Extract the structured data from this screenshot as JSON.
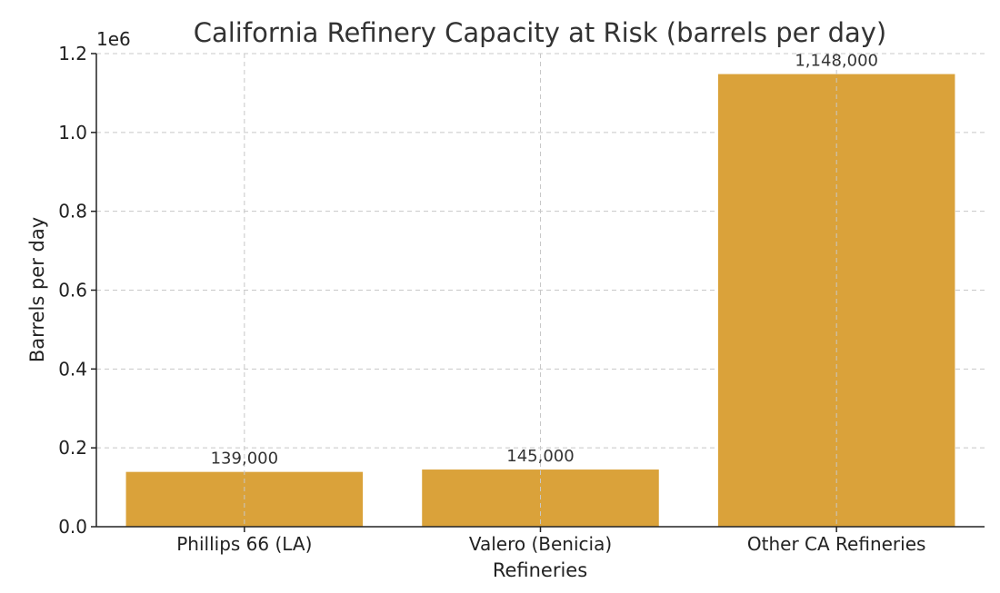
{
  "chart_data": {
    "type": "bar",
    "title": "California Refinery Capacity at Risk (barrels per day)",
    "xlabel": "Refineries",
    "ylabel": "Barrels per day",
    "y_offset_label": "1e6",
    "categories": [
      "Phillips 66 (LA)",
      "Valero (Benicia)",
      "Other CA Refineries"
    ],
    "values": [
      139000,
      145000,
      1148000
    ],
    "data_labels": [
      "139,000",
      "145,000",
      "1,148,000"
    ],
    "ylim": [
      0,
      1200000
    ],
    "y_ticks": [
      0,
      200000,
      400000,
      600000,
      800000,
      1000000,
      1200000
    ],
    "y_tick_labels": [
      "0.0",
      "0.2",
      "0.4",
      "0.6",
      "0.8",
      "1.0",
      "1.2"
    ],
    "grid": true,
    "bar_color": "#DAA23A"
  }
}
